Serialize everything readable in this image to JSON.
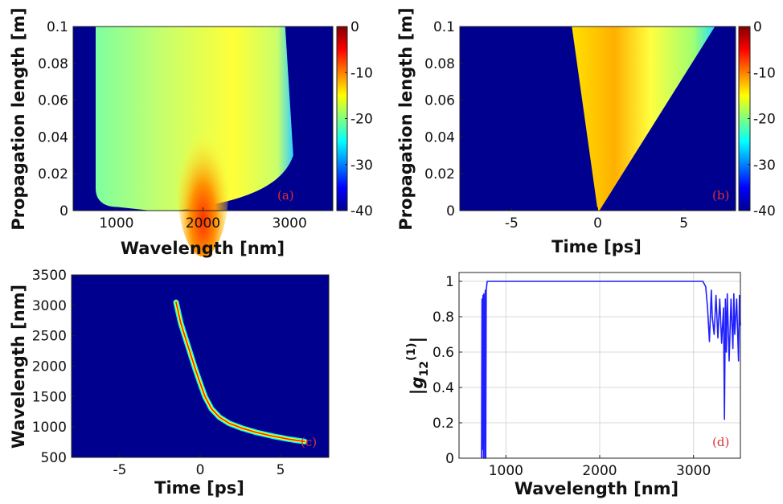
{
  "chart_data": [
    {
      "panel": "a",
      "type": "heatmap",
      "panel_tag": "(a)",
      "xlabel": "Wavelength [nm]",
      "ylabel": "Propagation length [m]",
      "xlim": [
        500,
        3500
      ],
      "ylim": [
        0,
        0.1
      ],
      "xticks": [
        1000,
        2000,
        3000
      ],
      "yticks": [
        0,
        0.02,
        0.04,
        0.06,
        0.08,
        0.1
      ],
      "colorbar": {
        "ticks": [
          0,
          -10,
          -20,
          -30,
          -40
        ],
        "range": [
          -40,
          0
        ]
      },
      "features": {
        "band_edges_nm_final": [
          760,
          2950
        ],
        "peak_region": {
          "x": [
            1700,
            2300
          ],
          "y": [
            0.0,
            0.04
          ],
          "level_dB": -5
        },
        "background_level_dB": -40,
        "band_level_dB": -17
      }
    },
    {
      "panel": "b",
      "type": "heatmap",
      "panel_tag": "(b)",
      "xlabel": "Time [ps]",
      "ylabel": "Propagation length [m]",
      "xlim": [
        -8,
        8
      ],
      "ylim": [
        0,
        0.1
      ],
      "xticks": [
        -5,
        0,
        5
      ],
      "yticks": [
        0,
        0.02,
        0.04,
        0.06,
        0.08,
        0.1
      ],
      "colorbar": {
        "ticks": [
          0,
          -10,
          -20,
          -30,
          -40
        ],
        "range": [
          -40,
          0
        ]
      },
      "features": {
        "wedge_left_edge_ps": [
          [
            0,
            0
          ],
          [
            -1.5,
            0.1
          ]
        ],
        "wedge_right_edge_ps": [
          [
            0.1,
            0
          ],
          [
            6.8,
            0.1
          ]
        ],
        "background_level_dB": -40
      }
    },
    {
      "panel": "c",
      "type": "line",
      "panel_tag": "(c)",
      "xlabel": "Time [ps]",
      "ylabel": "Wavelength [nm]",
      "xlim": [
        -8,
        8
      ],
      "ylim": [
        500,
        3500
      ],
      "xticks": [
        -5,
        0,
        5
      ],
      "yticks": [
        500,
        1000,
        1500,
        2000,
        2500,
        3000,
        3500
      ],
      "series": [
        {
          "x": [
            -1.5,
            -1.2,
            -0.9,
            -0.6,
            -0.3,
            0.0,
            0.3,
            0.7,
            1.2,
            1.8,
            2.6,
            3.5,
            4.5,
            5.5,
            6.5
          ],
          "y": [
            3050,
            2700,
            2450,
            2200,
            1950,
            1720,
            1500,
            1300,
            1160,
            1060,
            980,
            910,
            850,
            800,
            760
          ]
        }
      ]
    },
    {
      "panel": "d",
      "type": "line",
      "panel_tag": "(d)",
      "xlabel": "Wavelength [nm]",
      "ylabel": "|g12(1)|",
      "ylabel_main": "|g",
      "ylabel_sub": "12",
      "ylabel_sup": "(1)",
      "ylabel_end": "|",
      "xlim": [
        500,
        3500
      ],
      "ylim": [
        0,
        1.05
      ],
      "xticks": [
        1000,
        2000,
        3000
      ],
      "yticks": [
        0,
        0.2,
        0.4,
        0.6,
        0.8,
        1
      ],
      "grid": true,
      "series": [
        {
          "x": [
            740,
            745,
            750,
            755,
            760,
            765,
            770,
            775,
            780,
            785,
            790,
            800,
            820,
            1000,
            1500,
            2000,
            2500,
            3000,
            3100,
            3130,
            3150,
            3170,
            3190,
            3200,
            3220,
            3240,
            3260,
            3280,
            3300,
            3320,
            3330,
            3340,
            3350,
            3360,
            3380,
            3400,
            3420,
            3430,
            3440,
            3460,
            3480,
            3490,
            3500
          ],
          "y": [
            0,
            0.9,
            0.05,
            0.92,
            0,
            0.93,
            0.88,
            0,
            0.95,
            0,
            0.95,
            1,
            1,
            1,
            1,
            1,
            1,
            1,
            1,
            0.97,
            0.85,
            0.66,
            0.95,
            0.8,
            0.7,
            0.92,
            0.68,
            0.9,
            0.65,
            0.85,
            0.22,
            0.9,
            0.6,
            0.93,
            0.55,
            0.9,
            0.62,
            0.93,
            0.7,
            0.9,
            0.55,
            0.92,
            0.75
          ]
        }
      ]
    }
  ]
}
